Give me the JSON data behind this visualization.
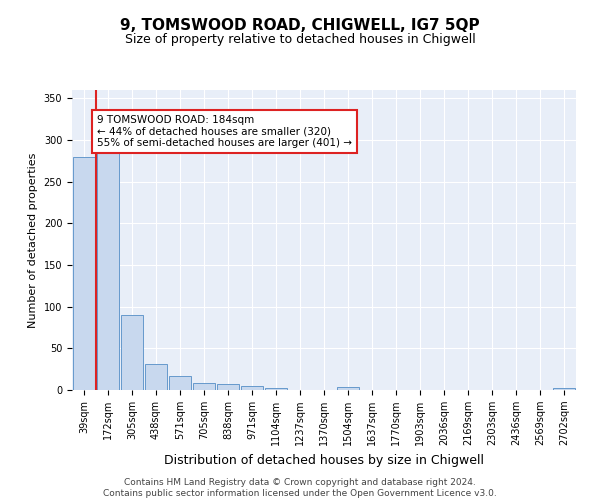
{
  "title": "9, TOMSWOOD ROAD, CHIGWELL, IG7 5QP",
  "subtitle": "Size of property relative to detached houses in Chigwell",
  "xlabel": "Distribution of detached houses by size in Chigwell",
  "ylabel": "Number of detached properties",
  "categories": [
    "39sqm",
    "172sqm",
    "305sqm",
    "438sqm",
    "571sqm",
    "705sqm",
    "838sqm",
    "971sqm",
    "1104sqm",
    "1237sqm",
    "1370sqm",
    "1504sqm",
    "1637sqm",
    "1770sqm",
    "1903sqm",
    "2036sqm",
    "2169sqm",
    "2303sqm",
    "2436sqm",
    "2569sqm",
    "2702sqm"
  ],
  "values": [
    280,
    290,
    90,
    31,
    17,
    9,
    7,
    5,
    2,
    0,
    0,
    4,
    0,
    0,
    0,
    0,
    0,
    0,
    0,
    0,
    3
  ],
  "bar_color": "#c8d8ee",
  "bar_edge_color": "#6699cc",
  "red_line_color": "#dd2222",
  "annotation_text": "9 TOMSWOOD ROAD: 184sqm\n← 44% of detached houses are smaller (320)\n55% of semi-detached houses are larger (401) →",
  "annotation_box_color": "white",
  "annotation_box_edge": "#dd2222",
  "ylim": [
    0,
    360
  ],
  "yticks": [
    0,
    50,
    100,
    150,
    200,
    250,
    300,
    350
  ],
  "footer": "Contains HM Land Registry data © Crown copyright and database right 2024.\nContains public sector information licensed under the Open Government Licence v3.0.",
  "bg_color": "#e8eef8",
  "fig_bg": "white",
  "title_fontsize": 11,
  "subtitle_fontsize": 9,
  "xlabel_fontsize": 9,
  "ylabel_fontsize": 8,
  "tick_fontsize": 7,
  "footer_fontsize": 6.5,
  "annotation_fontsize": 7.5,
  "red_line_index": 0,
  "bar_linewidth": 0.7
}
